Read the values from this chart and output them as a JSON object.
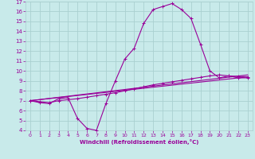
{
  "xlabel": "Windchill (Refroidissement éolien,°C)",
  "bg_color": "#c8eaea",
  "grid_color": "#aad0d0",
  "line_color": "#990099",
  "xlim": [
    -0.5,
    23.5
  ],
  "ylim": [
    4,
    17
  ],
  "xticks": [
    0,
    1,
    2,
    3,
    4,
    5,
    6,
    7,
    8,
    9,
    10,
    11,
    12,
    13,
    14,
    15,
    16,
    17,
    18,
    19,
    20,
    21,
    22,
    23
  ],
  "yticks": [
    4,
    5,
    6,
    7,
    8,
    9,
    10,
    11,
    12,
    13,
    14,
    15,
    16,
    17
  ],
  "line1_x": [
    0,
    1,
    2,
    3,
    4,
    5,
    6,
    7,
    8,
    9,
    10,
    11,
    12,
    13,
    14,
    15,
    16,
    17,
    18,
    19,
    20,
    21,
    22,
    23
  ],
  "line1_y": [
    7.0,
    6.8,
    6.7,
    7.2,
    7.3,
    5.2,
    4.2,
    4.0,
    6.7,
    9.0,
    11.2,
    12.3,
    14.8,
    16.2,
    16.5,
    16.8,
    16.2,
    15.3,
    12.7,
    10.0,
    9.3,
    9.5,
    9.3,
    9.3
  ],
  "line2_x": [
    0,
    1,
    2,
    3,
    4,
    5,
    6,
    7,
    8,
    9,
    10,
    11,
    12,
    13,
    14,
    15,
    16,
    17,
    18,
    19,
    20,
    21,
    22,
    23
  ],
  "line2_y": [
    7.0,
    6.9,
    6.8,
    7.0,
    7.1,
    7.2,
    7.35,
    7.5,
    7.65,
    7.8,
    8.0,
    8.2,
    8.4,
    8.6,
    8.75,
    8.9,
    9.05,
    9.2,
    9.35,
    9.5,
    9.6,
    9.5,
    9.45,
    9.4
  ],
  "line3_x": [
    0,
    23
  ],
  "line3_y": [
    7.0,
    9.4
  ],
  "line4_x": [
    0,
    23
  ],
  "line4_y": [
    7.0,
    9.6
  ]
}
